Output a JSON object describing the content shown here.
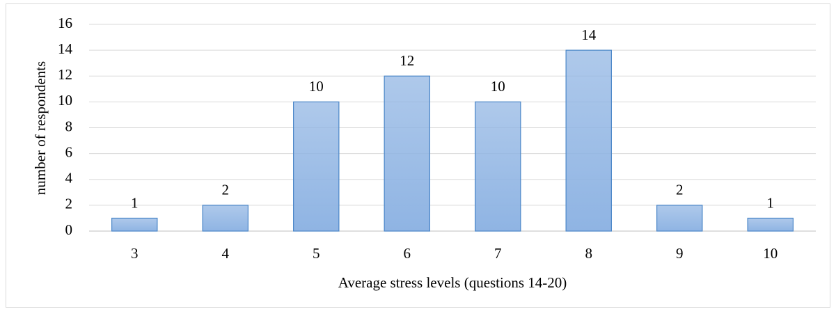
{
  "chart_data": {
    "type": "bar",
    "x_label": "Average stress levels (questions 14-20)",
    "y_label": "number of respondents",
    "categories": [
      "3",
      "4",
      "5",
      "6",
      "7",
      "8",
      "9",
      "10"
    ],
    "values": [
      1,
      2,
      10,
      12,
      10,
      14,
      2,
      1
    ],
    "color": "#8fb4e3",
    "edge_color": "#4a86c8",
    "ylim": [
      0,
      16
    ],
    "yticks": [
      0,
      2,
      4,
      6,
      8,
      10,
      12,
      14,
      16
    ],
    "grid": true,
    "data_labels": true
  }
}
